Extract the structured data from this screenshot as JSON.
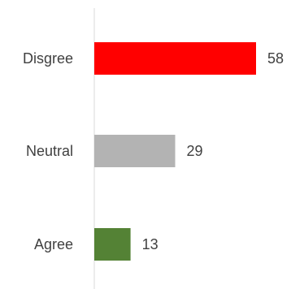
{
  "chart_data": {
    "type": "bar",
    "orientation": "horizontal",
    "categories": [
      "Disgree",
      "Neutral",
      "Agree"
    ],
    "values": [
      58,
      29,
      13
    ],
    "value_labels": [
      "58",
      "29",
      "13"
    ],
    "colors": [
      "#ff0000",
      "#b3b3b3",
      "#548235"
    ],
    "xlim": [
      0,
      58
    ],
    "grid": false,
    "title": "",
    "xlabel": "",
    "ylabel": ""
  }
}
